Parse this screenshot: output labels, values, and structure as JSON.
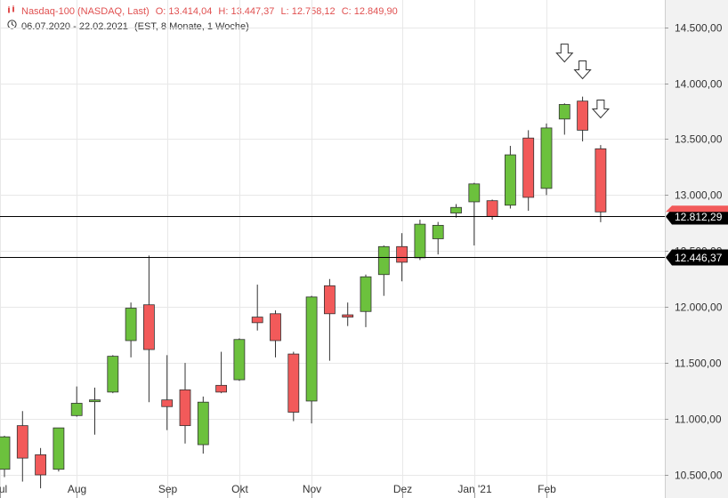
{
  "header": {
    "instrument": "Nasdaq-100 (NASDAQ, Last)",
    "open": "O: 13.414,04",
    "high": "H: 13.447,37",
    "low": "L: 12.758,12",
    "close": "C: 12.849,90",
    "date_range": "06.07.2020 - 22.02.2021",
    "timezone_period": "(EST, 8 Monate, 1 Woche)",
    "bars_icon": "candlestick-icon",
    "clock_icon": "clock-icon"
  },
  "colors": {
    "up": "#6cc13d",
    "down": "#f25a5a",
    "grid": "#e8e8e8",
    "axis_bg": "#f2f2f2"
  },
  "chart_data": {
    "type": "candlestick",
    "title": "",
    "ylim": [
      10450,
      14650
    ],
    "y_ticks": [
      10500,
      11000,
      11500,
      12000,
      12500,
      13000,
      13500,
      14000,
      14500
    ],
    "y_tick_labels": [
      "10.500,00",
      "11.000,00",
      "11.500,00",
      "12.000,00",
      "12.500,00",
      "13.000,00",
      "13.500,00",
      "14.000,00",
      "14.500,00"
    ],
    "x_labels": [
      {
        "label": "Jul",
        "week": -0.25
      },
      {
        "label": "Aug",
        "week": 4
      },
      {
        "label": "Sep",
        "week": 9
      },
      {
        "label": "Okt",
        "week": 13
      },
      {
        "label": "Nov",
        "week": 17
      },
      {
        "label": "Dez",
        "week": 22
      },
      {
        "label": "Jan '21",
        "week": 26
      },
      {
        "label": "Feb",
        "week": 30
      }
    ],
    "candles": [
      {
        "week": "06.07.2020",
        "open": 10550,
        "high": 10850,
        "low": 10480,
        "close": 10840
      },
      {
        "week": "13.07.2020",
        "open": 10940,
        "high": 11070,
        "low": 10440,
        "close": 10650
      },
      {
        "week": "20.07.2020",
        "open": 10680,
        "high": 10740,
        "low": 10380,
        "close": 10500
      },
      {
        "week": "27.07.2020",
        "open": 10550,
        "high": 10920,
        "low": 10530,
        "close": 10920
      },
      {
        "week": "03.08.2020",
        "open": 11030,
        "high": 11290,
        "low": 11020,
        "close": 11140
      },
      {
        "week": "10.08.2020",
        "open": 11160,
        "high": 11280,
        "low": 10860,
        "close": 11170
      },
      {
        "week": "17.08.2020",
        "open": 11240,
        "high": 11570,
        "low": 11230,
        "close": 11560
      },
      {
        "week": "24.08.2020",
        "open": 11700,
        "high": 12040,
        "low": 11550,
        "close": 11990
      },
      {
        "week": "31.08.2020",
        "open": 12020,
        "high": 12460,
        "low": 11150,
        "close": 11620
      },
      {
        "week": "07.09.2020",
        "open": 11170,
        "high": 11570,
        "low": 10900,
        "close": 11110
      },
      {
        "week": "14.09.2020",
        "open": 11260,
        "high": 11500,
        "low": 10780,
        "close": 10940
      },
      {
        "week": "21.09.2020",
        "open": 10770,
        "high": 11200,
        "low": 10690,
        "close": 11150
      },
      {
        "week": "28.09.2020",
        "open": 11300,
        "high": 11600,
        "low": 11230,
        "close": 11240
      },
      {
        "week": "05.10.2020",
        "open": 11350,
        "high": 11720,
        "low": 11340,
        "close": 11710
      },
      {
        "week": "12.10.2020",
        "open": 11910,
        "high": 12200,
        "low": 11790,
        "close": 11860
      },
      {
        "week": "19.10.2020",
        "open": 11940,
        "high": 11970,
        "low": 11550,
        "close": 11700
      },
      {
        "week": "26.10.2020",
        "open": 11580,
        "high": 11600,
        "low": 10980,
        "close": 11060
      },
      {
        "week": "02.11.2020",
        "open": 11160,
        "high": 12100,
        "low": 10960,
        "close": 12090
      },
      {
        "week": "09.11.2020",
        "open": 12190,
        "high": 12250,
        "low": 11520,
        "close": 11940
      },
      {
        "week": "16.11.2020",
        "open": 11930,
        "high": 12040,
        "low": 11830,
        "close": 11910
      },
      {
        "week": "23.11.2020",
        "open": 11960,
        "high": 12290,
        "low": 11820,
        "close": 12270
      },
      {
        "week": "30.11.2020",
        "open": 12290,
        "high": 12550,
        "low": 12100,
        "close": 12540
      },
      {
        "week": "07.12.2020",
        "open": 12540,
        "high": 12660,
        "low": 12230,
        "close": 12400
      },
      {
        "week": "14.12.2020",
        "open": 12440,
        "high": 12780,
        "low": 12420,
        "close": 12740
      },
      {
        "week": "21.12.2020",
        "open": 12610,
        "high": 12760,
        "low": 12470,
        "close": 12730
      },
      {
        "week": "28.12.2020",
        "open": 12840,
        "high": 12920,
        "low": 12800,
        "close": 12890
      },
      {
        "week": "04.01.2021",
        "open": 12940,
        "high": 13110,
        "low": 12550,
        "close": 13100
      },
      {
        "week": "11.01.2021",
        "open": 12950,
        "high": 12960,
        "low": 12780,
        "close": 12810
      },
      {
        "week": "18.01.2021",
        "open": 12910,
        "high": 13440,
        "low": 12880,
        "close": 13360
      },
      {
        "week": "25.01.2021",
        "open": 13510,
        "high": 13580,
        "low": 12860,
        "close": 12980
      },
      {
        "week": "01.02.2021",
        "open": 13060,
        "high": 13640,
        "low": 13000,
        "close": 13600
      },
      {
        "week": "08.02.2021",
        "open": 13680,
        "high": 13820,
        "low": 13540,
        "close": 13810
      },
      {
        "week": "15.02.2021",
        "open": 13840,
        "high": 13880,
        "low": 13480,
        "close": 13580
      },
      {
        "week": "22.02.2021",
        "open": 13414.04,
        "high": 13447.37,
        "low": 12758.12,
        "close": 12849.9
      }
    ],
    "price_lines": [
      {
        "value": 12812.29,
        "label": "12.812,29"
      },
      {
        "value": 12446.37,
        "label": "12.446,37"
      }
    ],
    "arrow_markers": [
      {
        "week": "08.02.2021",
        "above_price": 14270
      },
      {
        "week": "15.02.2021",
        "above_price": 14120
      },
      {
        "week": "22.02.2021",
        "above_price": 13770
      }
    ]
  }
}
